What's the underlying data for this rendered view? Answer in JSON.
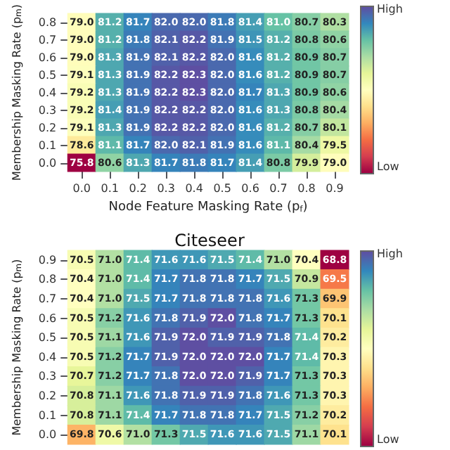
{
  "chart_data": [
    {
      "type": "heatmap",
      "xlabel": "Node Feature Masking Rate (p$_{f}$)",
      "ylabel": "Membership Masking Rate (p$_{m}$)",
      "annotations": [
        "High",
        "Low"
      ],
      "data_labels": true,
      "categories": [
        "0.0",
        "0.1",
        "0.2",
        "0.3",
        "0.4",
        "0.5",
        "0.6",
        "0.7",
        "0.8",
        "0.9"
      ],
      "y_categories": [
        "0.8",
        "0.7",
        "0.6",
        "0.5",
        "0.4",
        "0.3",
        "0.2",
        "0.1",
        "0.0"
      ],
      "cells": [
        [
          79.0,
          81.2,
          81.7,
          82.0,
          82.0,
          81.8,
          81.4,
          81.0,
          80.7,
          80.3
        ],
        [
          79.0,
          81.2,
          81.8,
          82.1,
          82.2,
          81.9,
          81.5,
          81.2,
          80.8,
          80.6
        ],
        [
          79.0,
          81.3,
          81.9,
          82.1,
          82.2,
          82.0,
          81.6,
          81.2,
          80.9,
          80.7
        ],
        [
          79.1,
          81.3,
          81.9,
          82.2,
          82.3,
          82.0,
          81.6,
          81.2,
          80.9,
          80.7
        ],
        [
          79.2,
          81.3,
          81.9,
          82.2,
          82.3,
          82.0,
          81.7,
          81.3,
          80.9,
          80.6
        ],
        [
          79.2,
          81.4,
          81.9,
          82.2,
          82.2,
          82.0,
          81.6,
          81.3,
          80.8,
          80.4
        ],
        [
          79.1,
          81.3,
          81.9,
          82.2,
          82.2,
          82.0,
          81.6,
          81.2,
          80.7,
          80.1
        ],
        [
          78.6,
          81.1,
          81.7,
          82.0,
          82.1,
          81.9,
          81.6,
          81.1,
          80.4,
          79.5
        ],
        [
          75.8,
          80.6,
          81.3,
          81.7,
          81.8,
          81.7,
          81.4,
          80.8,
          79.9,
          79.0
        ]
      ],
      "cell_labels": [
        [
          "79.0",
          "81.2",
          "81.7",
          "82.0",
          "82.0",
          "81.8",
          "81.4",
          "81.0",
          "80.7",
          "80.3"
        ],
        [
          "79.0",
          "81.2",
          "81.8",
          "82.1",
          "82.2",
          "81.9",
          "81.5",
          "81.2",
          "80.8",
          "80.6"
        ],
        [
          "79.0",
          "81.3",
          "81.9",
          "82.1",
          "82.2",
          "82.0",
          "81.6",
          "81.2",
          "80.9",
          "80.7"
        ],
        [
          "79.1",
          "81.3",
          "81.9",
          "82.2",
          "82.3",
          "82.0",
          "81.6",
          "81.2",
          "80.9",
          "80.7"
        ],
        [
          "79.2",
          "81.3",
          "81.9",
          "82.2",
          "82.3",
          "82.0",
          "81.7",
          "81.3",
          "80.9",
          "80.6"
        ],
        [
          "79.2",
          "81.4",
          "81.9",
          "82.2",
          "82.2",
          "82.0",
          "81.6",
          "81.3",
          "80.8",
          "80.4"
        ],
        [
          "79.1",
          "81.3",
          "81.9",
          "82.2",
          "82.2",
          "82.0",
          "81.6",
          "81.2",
          "80.7",
          "80.1"
        ],
        [
          "78.6",
          "81.1",
          "81.7",
          "82.0",
          "82.1",
          "81.9",
          "81.6",
          "81.1",
          "80.4",
          "79.5"
        ],
        [
          "75.8",
          "80.6",
          "81.3",
          "81.7",
          "81.8",
          "81.7",
          "81.4",
          "80.8",
          "79.9",
          "79.0"
        ]
      ]
    },
    {
      "type": "heatmap",
      "title": "Citeseer",
      "ylabel": "Membership Masking Rate (p$_{m}$)",
      "annotations": [
        "High",
        "Low"
      ],
      "data_labels": true,
      "tick_labels": "y",
      "categories": [
        null,
        null,
        null,
        null,
        null,
        null,
        null,
        null,
        null,
        null
      ],
      "y_categories": [
        "0.9",
        "0.8",
        "0.7",
        "0.6",
        "0.5",
        "0.4",
        "0.3",
        "0.2",
        "0.1",
        "0.0"
      ],
      "cells": [
        [
          70.5,
          71.0,
          71.4,
          71.6,
          71.6,
          71.5,
          71.4,
          71.0,
          70.4,
          68.8
        ],
        [
          70.4,
          71.0,
          71.4,
          71.7,
          71.8,
          71.8,
          71.7,
          71.5,
          70.9,
          69.5
        ],
        [
          70.4,
          71.0,
          71.5,
          71.7,
          71.8,
          71.8,
          71.8,
          71.6,
          71.3,
          69.9
        ],
        [
          70.5,
          71.2,
          71.6,
          71.8,
          71.9,
          72.0,
          71.8,
          71.7,
          71.3,
          70.1
        ],
        [
          70.5,
          71.1,
          71.6,
          71.9,
          72.0,
          71.9,
          71.9,
          71.8,
          71.4,
          70.2
        ],
        [
          70.5,
          71.2,
          71.7,
          71.9,
          72.0,
          72.0,
          72.0,
          71.7,
          71.4,
          70.3
        ],
        [
          70.7,
          71.2,
          71.7,
          71.8,
          72.0,
          72.0,
          71.9,
          71.7,
          71.3,
          70.3
        ],
        [
          70.8,
          71.1,
          71.6,
          71.8,
          71.9,
          71.9,
          71.8,
          71.6,
          71.3,
          70.3
        ],
        [
          70.8,
          71.1,
          71.4,
          71.7,
          71.8,
          71.8,
          71.7,
          71.5,
          71.2,
          70.2
        ],
        [
          69.8,
          70.6,
          71.0,
          71.3,
          71.5,
          71.6,
          71.6,
          71.5,
          71.1,
          70.1
        ]
      ],
      "cell_labels": [
        [
          "70.5",
          "71.0",
          "71.4",
          "71.6",
          "71.6",
          "71.5",
          "71.4",
          "71.0",
          "70.4",
          "68.8"
        ],
        [
          "70.4",
          "71.0",
          "71.4",
          "71.7",
          "71.8",
          "71.8",
          "71.7",
          "71.5",
          "70.9",
          "69.5"
        ],
        [
          "70.4",
          "71.0",
          "71.5",
          "71.7",
          "71.8",
          "71.8",
          "71.8",
          "71.6",
          "71.3",
          "69.9"
        ],
        [
          "70.5",
          "71.2",
          "71.6",
          "71.8",
          "71.9",
          "72.0",
          "71.8",
          "71.7",
          "71.3",
          "70.1"
        ],
        [
          "70.5",
          "71.1",
          "71.6",
          "71.9",
          "72.0",
          "71.9",
          "71.9",
          "71.8",
          "71.4",
          "70.2"
        ],
        [
          "70.5",
          "71.2",
          "71.7",
          "71.9",
          "72.0",
          "72.0",
          "72.0",
          "71.7",
          "71.4",
          "70.3"
        ],
        [
          "70.7",
          "71.2",
          "71.7",
          "71.8",
          "72.0",
          "72.0",
          "71.9",
          "71.7",
          "71.3",
          "70.3"
        ],
        [
          "70.8",
          "71.1",
          "71.6",
          "71.8",
          "71.9",
          "71.9",
          "71.8",
          "71.6",
          "71.3",
          "70.3"
        ],
        [
          "70.8",
          "71.1",
          "71.4",
          "71.7",
          "71.8",
          "71.8",
          "71.7",
          "71.5",
          "71.2",
          "70.2"
        ],
        [
          "69.8",
          "70.6",
          "71.0",
          "71.3",
          "71.5",
          "71.6",
          "71.6",
          "71.5",
          "71.1",
          "70.1"
        ]
      ]
    }
  ]
}
